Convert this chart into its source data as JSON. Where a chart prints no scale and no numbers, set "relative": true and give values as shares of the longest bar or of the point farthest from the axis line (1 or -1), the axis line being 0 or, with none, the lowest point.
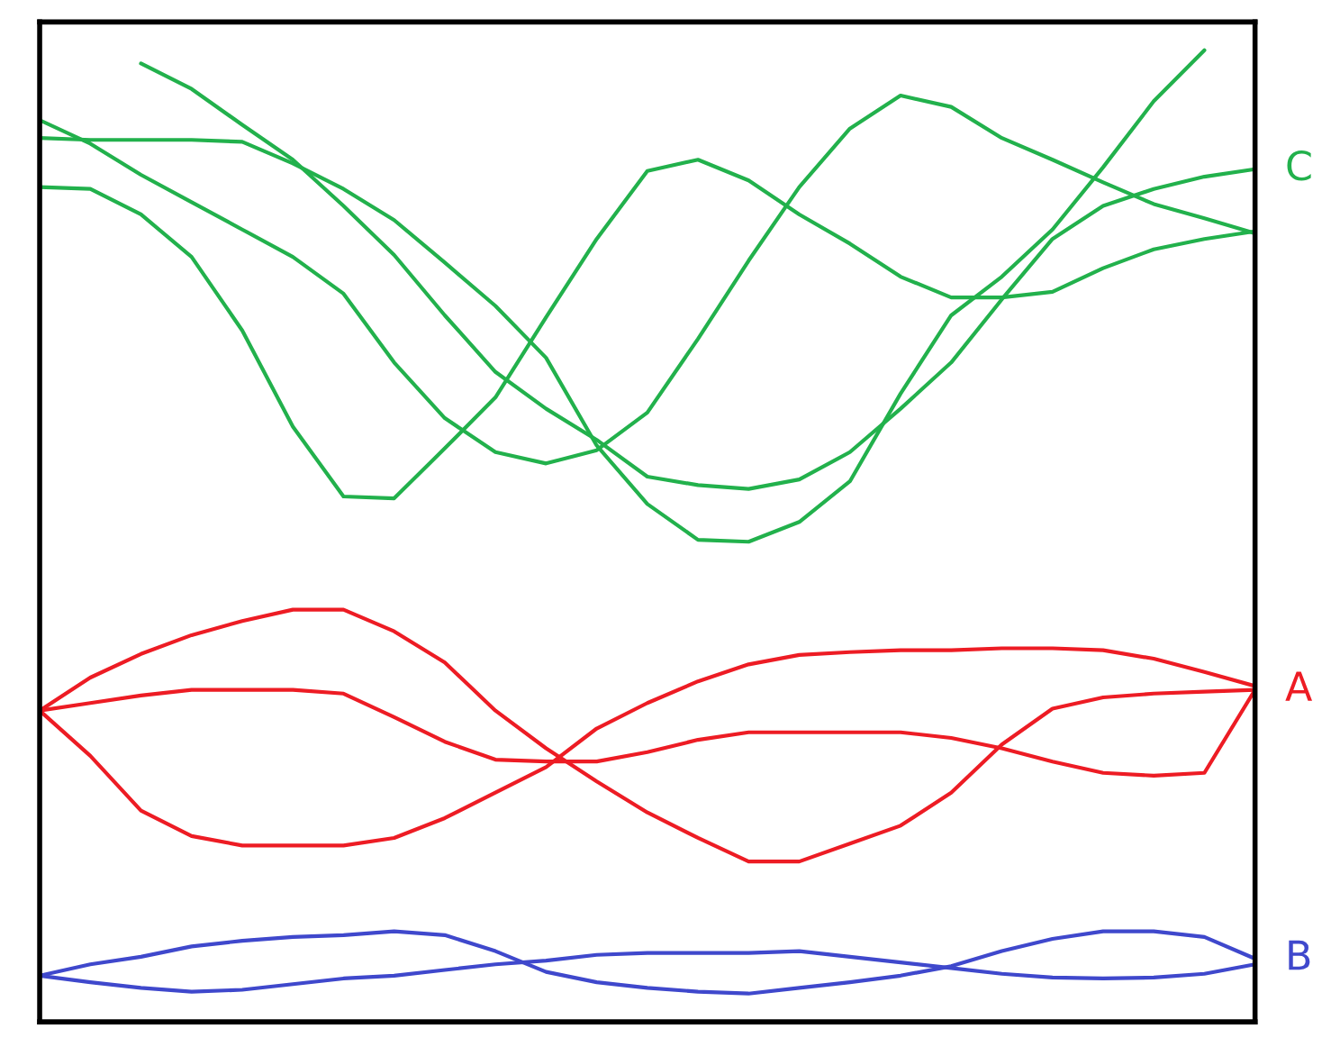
{
  "chart_data": {
    "type": "line",
    "relative": true,
    "legend": false,
    "grid": false,
    "marker": "none",
    "line_style": "solid",
    "categories": [
      null,
      null,
      null,
      null,
      null,
      null,
      null,
      null,
      null,
      null,
      null,
      null,
      null,
      null,
      null,
      null,
      null,
      null,
      null,
      null,
      null,
      null,
      null,
      null,
      null
    ],
    "series": [
      {
        "color": "#22b14c",
        "values": [
          0.855,
          0.853,
          0.826,
          0.781,
          0.703,
          0.601,
          0.527,
          0.525,
          0.578,
          0.632,
          0.717,
          0.8,
          0.872,
          0.884,
          0.862,
          0.826,
          0.795,
          0.76,
          0.738,
          0.738,
          0.744,
          0.769,
          0.789,
          0.8,
          0.808
        ]
      },
      {
        "color": "#22b14c",
        "values": [
          0.926,
          0.901,
          0.868,
          0.839,
          0.81,
          0.781,
          0.742,
          0.669,
          0.61,
          0.574,
          0.562,
          0.576,
          0.616,
          0.694,
          0.777,
          0.855,
          0.917,
          0.952,
          0.94,
          0.907,
          0.884,
          0.86,
          0.837,
          0.822,
          0.806
        ]
      },
      {
        "color": "#22b14c",
        "values": [
          0.907,
          0.905,
          0.905,
          0.905,
          0.903,
          0.88,
          0.853,
          0.82,
          0.775,
          0.729,
          0.674,
          0.581,
          0.519,
          0.481,
          0.479,
          0.5,
          0.543,
          0.636,
          0.719,
          0.76,
          0.81,
          0.876,
          0.946,
          1,
          null
        ]
      },
      {
        "name": "C",
        "color": "#22b14c",
        "values": [
          null,
          null,
          0.986,
          0.959,
          0.921,
          0.884,
          0.835,
          0.783,
          0.719,
          0.659,
          0.62,
          0.587,
          0.548,
          0.539,
          0.535,
          0.545,
          0.574,
          0.62,
          0.669,
          0.736,
          0.8,
          0.835,
          0.853,
          0.866,
          0.874
        ]
      },
      {
        "name": "A",
        "color": "#ed1c24",
        "values": [
          0.3,
          0.335,
          0.36,
          0.38,
          0.395,
          0.407,
          0.407,
          0.384,
          0.351,
          0.3,
          0.26,
          0.225,
          0.192,
          0.165,
          0.14,
          0.14,
          0.159,
          0.178,
          0.213,
          0.264,
          0.302,
          0.314,
          0.318,
          0.32,
          0.322
        ]
      },
      {
        "color": "#ed1c24",
        "values": [
          0.3,
          0.308,
          0.316,
          0.322,
          0.322,
          0.322,
          0.318,
          0.293,
          0.267,
          0.248,
          0.246,
          0.246,
          0.256,
          0.269,
          0.277,
          0.277,
          0.277,
          0.277,
          0.271,
          0.26,
          0.246,
          0.234,
          0.231,
          0.234,
          0.322
        ]
      },
      {
        "color": "#ed1c24",
        "values": [
          0.3,
          0.252,
          0.194,
          0.167,
          0.157,
          0.157,
          0.157,
          0.165,
          0.186,
          0.213,
          0.24,
          0.281,
          0.308,
          0.331,
          0.349,
          0.359,
          0.362,
          0.364,
          0.364,
          0.366,
          0.366,
          0.364,
          0.355,
          0.341,
          0.326
        ]
      },
      {
        "name": "B",
        "color": "#3f48cc",
        "values": [
          0.019,
          0.031,
          0.039,
          0.05,
          0.056,
          0.06,
          0.062,
          0.066,
          0.062,
          0.045,
          0.023,
          0.012,
          0.006,
          0.002,
          0,
          0.006,
          0.012,
          0.019,
          0.029,
          0.045,
          0.058,
          0.066,
          0.066,
          0.06,
          0.037
        ]
      },
      {
        "color": "#3f48cc",
        "values": [
          0.019,
          0.012,
          0.006,
          0.002,
          0.004,
          0.01,
          0.016,
          0.019,
          0.025,
          0.031,
          0.035,
          0.041,
          0.043,
          0.043,
          0.043,
          0.045,
          0.039,
          0.033,
          0.027,
          0.021,
          0.017,
          0.016,
          0.017,
          0.021,
          0.031
        ]
      }
    ]
  }
}
